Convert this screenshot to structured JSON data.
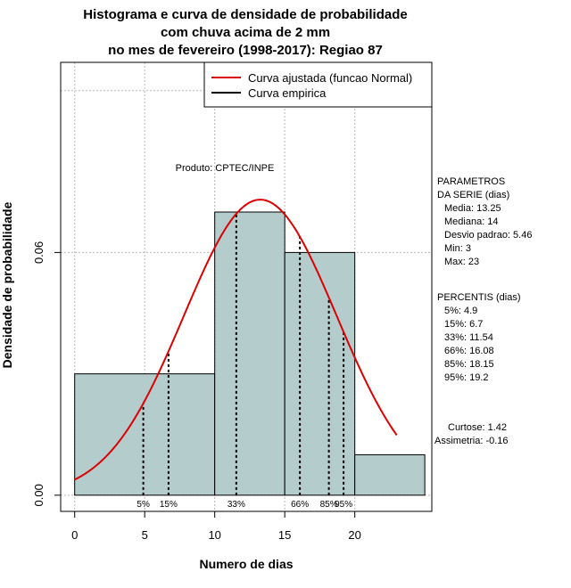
{
  "chart_data": {
    "type": "bar",
    "title_lines": [
      "Histograma e curva de densidade de probabilidade",
      "com chuva acima de 2 mm",
      "no mes de fevereiro (1998-2017): Regiao 87"
    ],
    "xlabel": "Numero de dias",
    "ylabel": "Densidade de probabilidade",
    "xlim": [
      -1,
      25.5
    ],
    "ylim": [
      -0.004,
      0.107
    ],
    "x_ticks": [
      0,
      5,
      10,
      15,
      20
    ],
    "x_tick_labels": [
      "0",
      "5",
      "10",
      "15",
      "20"
    ],
    "y_ticks": [
      0.0,
      0.06
    ],
    "y_tick_labels": [
      "0.00",
      "0.06"
    ],
    "grid_x": [
      0,
      5,
      10,
      15,
      20
    ],
    "grid_y": [
      0.0,
      0.06,
      0.1
    ],
    "bins": [
      {
        "x0": 0,
        "x1": 10,
        "density": 0.03
      },
      {
        "x0": 10,
        "x1": 15,
        "density": 0.07
      },
      {
        "x0": 15,
        "x1": 20,
        "density": 0.06
      },
      {
        "x0": 20,
        "x1": 25,
        "density": 0.01
      }
    ],
    "normal_curve": {
      "mean": 13.25,
      "sd": 5.46,
      "x_from": 0,
      "x_to": 23
    },
    "percentile_lines": [
      {
        "label": "5%",
        "x": 4.9
      },
      {
        "label": "15%",
        "x": 6.7
      },
      {
        "label": "33%",
        "x": 11.54
      },
      {
        "label": "66%",
        "x": 16.08
      },
      {
        "label": "85%",
        "x": 18.15
      },
      {
        "label": "95%",
        "x": 19.2
      }
    ],
    "legend": [
      {
        "label": "Curva ajustada (funcao Normal)",
        "color": "#dd0000"
      },
      {
        "label": "Curva empirica",
        "color": "#000000"
      }
    ],
    "legend_position": "top-right",
    "source_label": "Produto: CPTEC/INPE",
    "stats_lines": [
      "PARAMETROS",
      "DA SERIE (dias)",
      "Media: 13.25",
      "Mediana: 14",
      "Desvio padrao: 5.46",
      "Min: 3",
      "Max: 23"
    ],
    "percentile_lines_text": [
      "PERCENTIS (dias)",
      "5%: 4.9",
      "15%: 6.7",
      "33%: 11.54",
      "66%: 16.08",
      "85%: 18.15",
      "95%: 19.2"
    ],
    "shape_lines": [
      "Curtose: 1.42",
      "Assimetria: -0.16"
    ]
  },
  "colors": {
    "bar_fill": "#b4cccc",
    "curve": "#dd0000",
    "grid": "#b8b8b8"
  }
}
